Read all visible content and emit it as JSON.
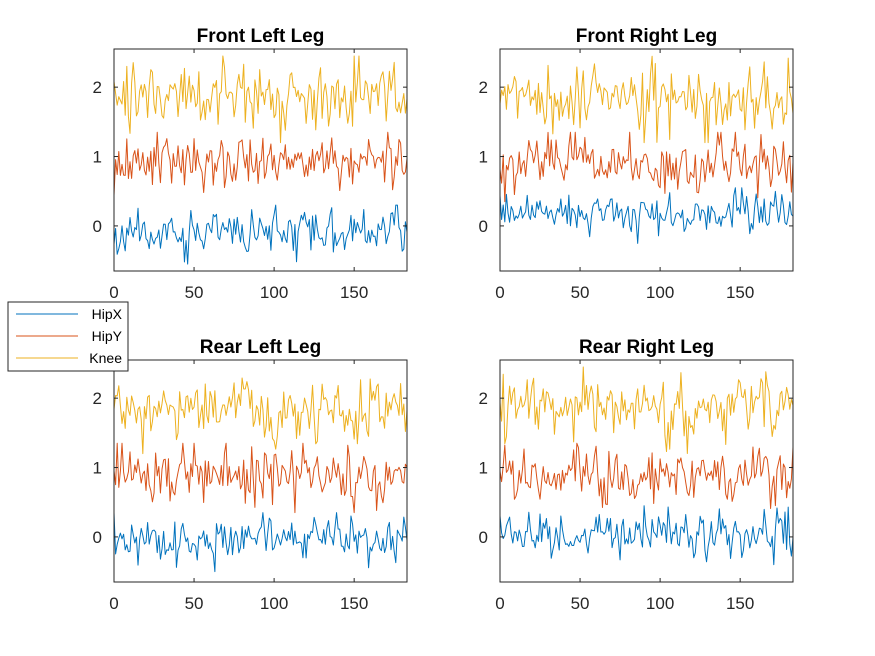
{
  "chart_data": {
    "type": "line",
    "x_range": [
      0,
      183
    ],
    "xlim": [
      0,
      183
    ],
    "ylim": [
      -0.65,
      2.55
    ],
    "xticks": [
      0,
      50,
      100,
      150
    ],
    "yticks": [
      0,
      1,
      2
    ],
    "xtick_labels": [
      "0",
      "50",
      "100",
      "150"
    ],
    "ytick_labels": [
      "0",
      "1",
      "2"
    ],
    "legend": {
      "location": "outside-left",
      "entries": [
        "HipX",
        "HipY",
        "Knee"
      ]
    },
    "series_style": [
      {
        "name": "HipX",
        "color": "#0072BD",
        "mean": -0.1,
        "spread": 0.17,
        "min": -0.55,
        "max": 0.3
      },
      {
        "name": "HipY",
        "color": "#D95319",
        "mean": 0.9,
        "spread": 0.22,
        "min": 0.35,
        "max": 1.35
      },
      {
        "name": "Knee",
        "color": "#EDB120",
        "mean": 1.85,
        "spread": 0.25,
        "min": 1.2,
        "max": 2.45
      }
    ],
    "panels": [
      {
        "title": "Front Left Leg",
        "offsets": [
          0.0,
          0.0,
          0.0
        ],
        "seed": 11
      },
      {
        "title": "Front Right Leg",
        "offsets": [
          0.25,
          0.0,
          0.0
        ],
        "seed": 23
      },
      {
        "title": "Rear Left Leg",
        "offsets": [
          0.05,
          0.0,
          0.0
        ],
        "seed": 37
      },
      {
        "title": "Rear Right Leg",
        "offsets": [
          0.15,
          0.0,
          0.0
        ],
        "seed": 51
      }
    ]
  }
}
